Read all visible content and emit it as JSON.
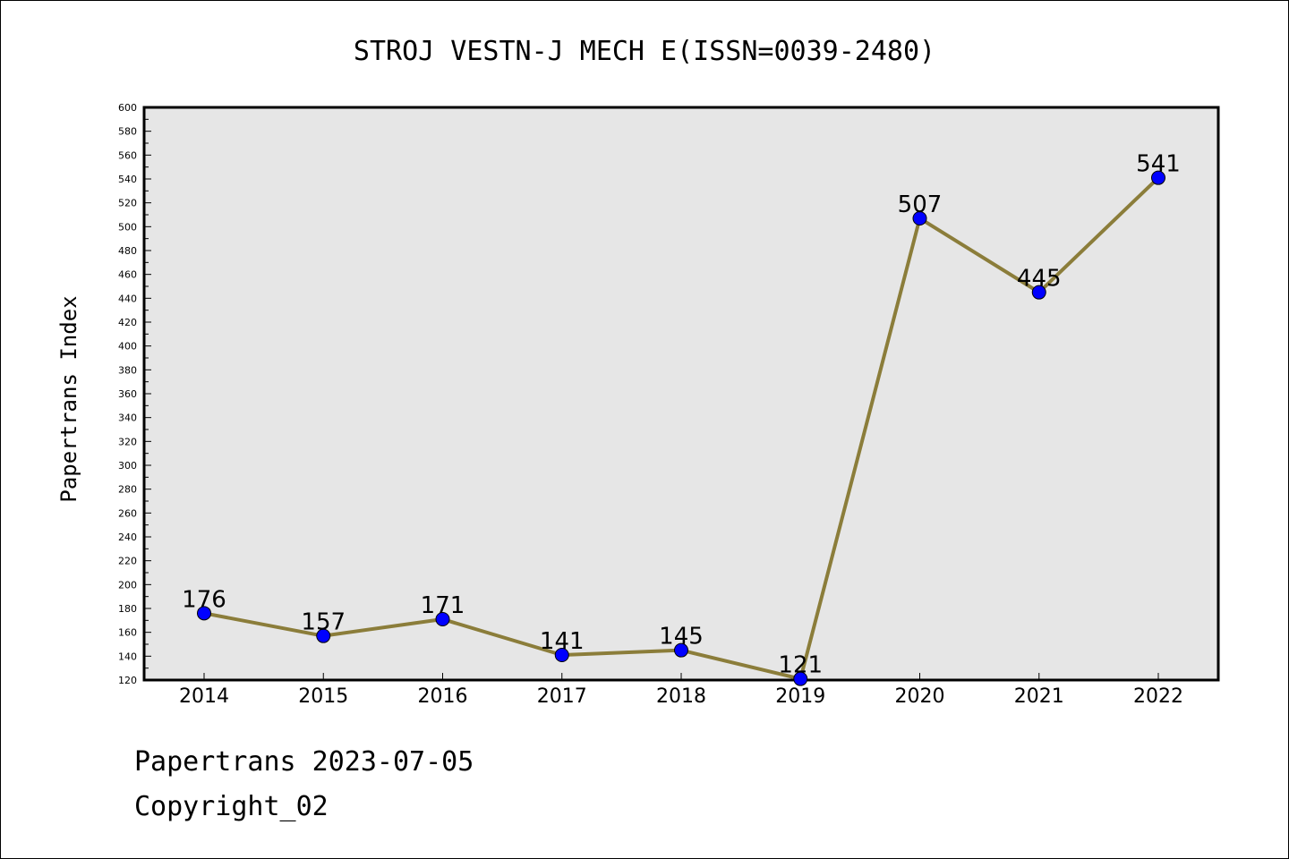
{
  "chart_data": {
    "type": "line",
    "title": "STROJ VESTN-J MECH E(ISSN=0039-2480)",
    "ylabel": "Papertrans Index",
    "xlabel": "",
    "categories": [
      "2014",
      "2015",
      "2016",
      "2017",
      "2018",
      "2019",
      "2020",
      "2021",
      "2022"
    ],
    "series": [
      {
        "values": [
          176,
          157,
          171,
          141,
          145,
          121,
          507,
          445,
          541
        ]
      }
    ],
    "ylim": [
      120,
      600
    ],
    "ytick_step": 20,
    "grid": false,
    "legend": "none",
    "colors": {
      "line": "#8B7D3A",
      "marker": "#0000FF",
      "plot_bg": "#E6E6E6"
    }
  },
  "footer": {
    "line1": "Papertrans 2023-07-05",
    "line2": "Copyright_02"
  }
}
